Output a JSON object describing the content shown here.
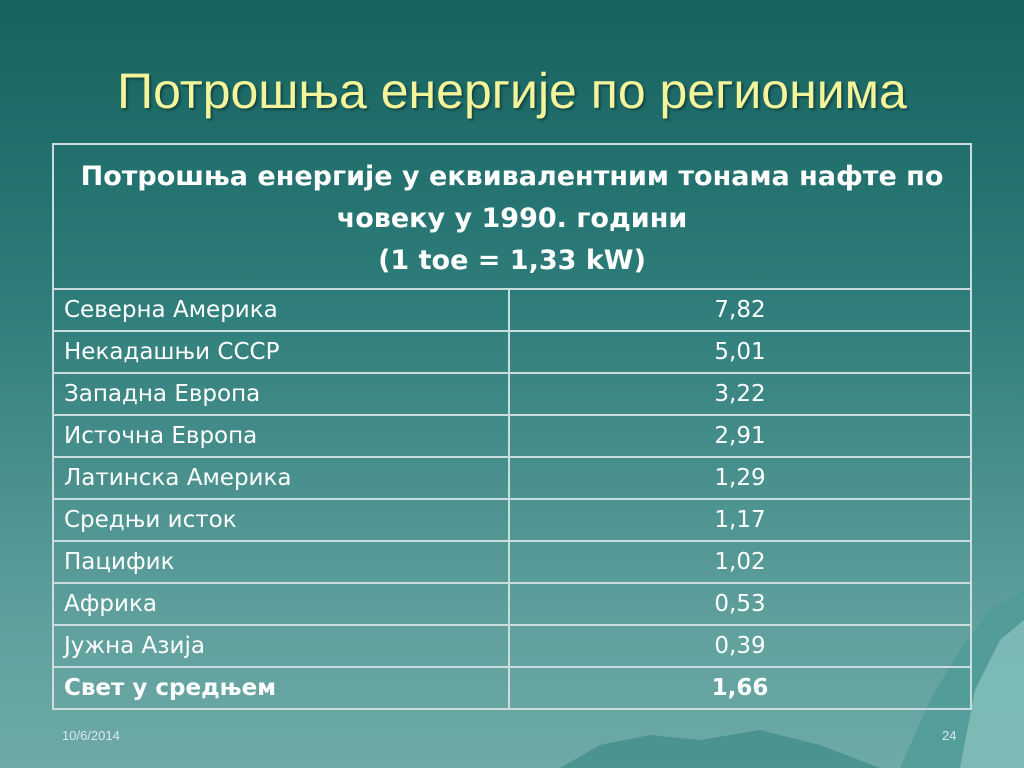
{
  "title": "Потрошња енергије по регионима",
  "table": {
    "header": [
      "Потрошња енергије у еквивалентним тонама нафте по човеку у 1990. години",
      "(1 toe = 1,33 kW)"
    ],
    "rows": [
      [
        "Северна Америка",
        "7,82"
      ],
      [
        "Некадашњи СССР",
        "5,01"
      ],
      [
        "Западна Европа",
        "3,22"
      ],
      [
        "Источна Европа",
        "2,91"
      ],
      [
        "Латинска Америка",
        "1,29"
      ],
      [
        "Средњи исток",
        "1,17"
      ],
      [
        "Пацифик",
        "1,02"
      ],
      [
        "Африка",
        "0,53"
      ],
      [
        "Јужна Азија",
        "0,39"
      ],
      [
        "Свет у средњем",
        "1,66"
      ]
    ]
  },
  "footer": {
    "date": "10/6/2014",
    "page": "24"
  }
}
